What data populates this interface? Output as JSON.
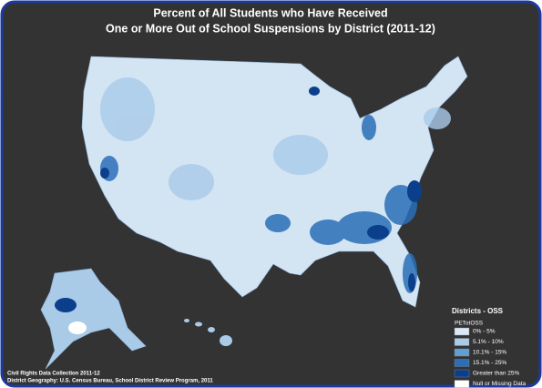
{
  "title": [
    "Percent of All Students who Have Received",
    "One or More Out of School Suspensions by District (2011-12)"
  ],
  "legend": {
    "title": "Districts - OSS",
    "field": "PETotOSS",
    "items": [
      {
        "label": "0% - 5%",
        "color": "#dbe8f5"
      },
      {
        "label": "5.1% - 10%",
        "color": "#a9cbe8"
      },
      {
        "label": "10.1% - 15%",
        "color": "#5f9fd3"
      },
      {
        "label": "15.1% - 25%",
        "color": "#2a6fb8"
      },
      {
        "label": "Greater than 25%",
        "color": "#0b3f8c"
      },
      {
        "label": "Null or Missing Data",
        "color": "#ffffff"
      }
    ]
  },
  "source": [
    "Civil Rights Data Collection 2011-12",
    "District Geography: U.S. Census Bureau, School District Review Program, 2011"
  ]
}
